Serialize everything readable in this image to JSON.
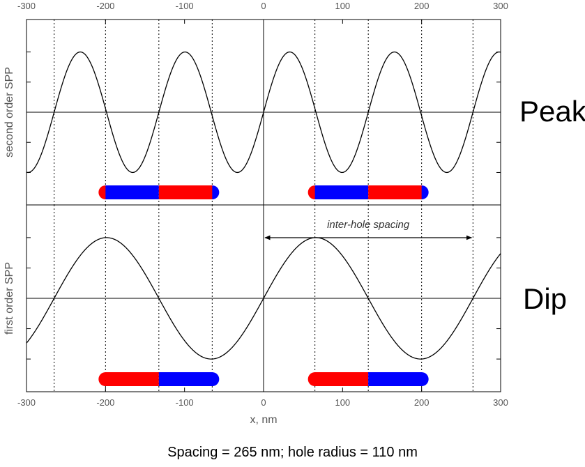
{
  "chart_data": {
    "type": "line",
    "xlabel": "x, nm",
    "xlim": [
      -300,
      300
    ],
    "x_ticks": [
      -300,
      -200,
      -100,
      0,
      100,
      200,
      300
    ],
    "panels": [
      {
        "ylabel": "second order SPP",
        "side_label": "Peak",
        "series": [
          {
            "function": "sin",
            "harmonic": 2,
            "period_nm": 132.5,
            "amplitude": 1.0,
            "x_range": [
              -300,
              300
            ]
          }
        ],
        "ylim": [
          -1.3,
          1.3
        ],
        "hole_bars": [
          {
            "x_start": -200,
            "x_end": -65,
            "segments": [
              {
                "from": -200,
                "to": -132.5,
                "color": "#0000ff"
              },
              {
                "from": -132.5,
                "to": -65,
                "color": "#ff0000"
              }
            ],
            "cap_left": "#ff0000",
            "cap_right": "#0000ff"
          },
          {
            "x_start": 65,
            "x_end": 200,
            "segments": [
              {
                "from": 65,
                "to": 132.5,
                "color": "#0000ff"
              },
              {
                "from": 132.5,
                "to": 200,
                "color": "#ff0000"
              }
            ],
            "cap_left": "#ff0000",
            "cap_right": "#0000ff"
          }
        ]
      },
      {
        "ylabel": "first order SPP",
        "side_label": "Dip",
        "series": [
          {
            "function": "sin",
            "harmonic": 1,
            "period_nm": 265,
            "amplitude": 1.0,
            "x_range": [
              -300,
              300
            ]
          }
        ],
        "ylim": [
          -1.3,
          1.3
        ],
        "hole_bars": [
          {
            "x_start": -200,
            "x_end": -65,
            "segments": [
              {
                "from": -200,
                "to": -132.5,
                "color": "#ff0000"
              },
              {
                "from": -132.5,
                "to": -65,
                "color": "#0000ff"
              }
            ],
            "cap_left": "#ff0000",
            "cap_right": "#0000ff"
          },
          {
            "x_start": 65,
            "x_end": 200,
            "segments": [
              {
                "from": 65,
                "to": 132.5,
                "color": "#ff0000"
              },
              {
                "from": 132.5,
                "to": 200,
                "color": "#0000ff"
              }
            ],
            "cap_left": "#ff0000",
            "cap_right": "#0000ff"
          }
        ],
        "annotation": {
          "text": "inter-hole spacing",
          "x_from": 0,
          "x_to": 265
        }
      }
    ],
    "vertical_dotted_lines": [
      -265,
      -200,
      -132.5,
      -65,
      65,
      132.5,
      200,
      265
    ],
    "vertical_solid_lines": [
      0
    ],
    "caption": "Spacing = 265 nm; hole radius = 110 nm"
  },
  "colors": {
    "red": "#ff0000",
    "blue": "#0000ff",
    "line": "#000000",
    "frame": "#000000"
  }
}
